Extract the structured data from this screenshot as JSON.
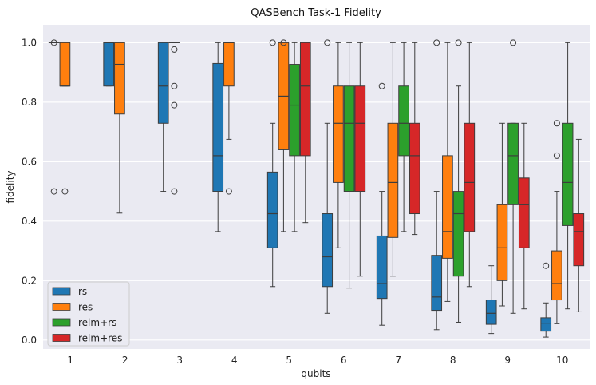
{
  "chart_data": {
    "type": "boxplot",
    "title": "QASBench Task-1 Fidelity",
    "xlabel": "qubits",
    "ylabel": "fidelity",
    "ylim": [
      -0.03,
      1.06
    ],
    "yticks": [
      "0.0",
      "0.2",
      "0.4",
      "0.6",
      "0.8",
      "1.0"
    ],
    "categories": [
      "1",
      "2",
      "3",
      "4",
      "5",
      "6",
      "7",
      "8",
      "9",
      "10"
    ],
    "legend_position": "lower-left",
    "grid": true,
    "series": [
      {
        "name": "rs",
        "color": "#1f77b4",
        "boxes": [
          {
            "category": "1",
            "q1": 1.0,
            "median": 1.0,
            "q3": 1.0,
            "whisker_low": 1.0,
            "whisker_high": 1.0,
            "outliers": [
              1.0,
              0.5
            ]
          },
          {
            "category": "2",
            "q1": 0.854,
            "median": 1.0,
            "q3": 1.0,
            "whisker_low": 0.854,
            "whisker_high": 1.0,
            "outliers": []
          },
          {
            "category": "3",
            "q1": 0.729,
            "median": 0.854,
            "q3": 1.0,
            "whisker_low": 0.5,
            "whisker_high": 1.0,
            "outliers": []
          },
          {
            "category": "4",
            "q1": 0.5,
            "median": 0.62,
            "q3": 0.93,
            "whisker_low": 0.365,
            "whisker_high": 1.0,
            "outliers": []
          },
          {
            "category": "5",
            "q1": 0.31,
            "median": 0.425,
            "q3": 0.565,
            "whisker_low": 0.18,
            "whisker_high": 0.729,
            "outliers": [
              1.0
            ]
          },
          {
            "category": "6",
            "q1": 0.18,
            "median": 0.28,
            "q3": 0.425,
            "whisker_low": 0.09,
            "whisker_high": 0.729,
            "outliers": [
              1.0
            ]
          },
          {
            "category": "7",
            "q1": 0.14,
            "median": 0.19,
            "q3": 0.35,
            "whisker_low": 0.05,
            "whisker_high": 0.5,
            "outliers": [
              0.854
            ]
          },
          {
            "category": "8",
            "q1": 0.1,
            "median": 0.145,
            "q3": 0.285,
            "whisker_low": 0.035,
            "whisker_high": 0.5,
            "outliers": [
              1.0
            ]
          },
          {
            "category": "9",
            "q1": 0.053,
            "median": 0.09,
            "q3": 0.135,
            "whisker_low": 0.022,
            "whisker_high": 0.25,
            "outliers": []
          },
          {
            "category": "10",
            "q1": 0.03,
            "median": 0.057,
            "q3": 0.075,
            "whisker_low": 0.01,
            "whisker_high": 0.125,
            "outliers": [
              0.25
            ]
          }
        ]
      },
      {
        "name": "res",
        "color": "#ff7f0e",
        "boxes": [
          {
            "category": "1",
            "q1": 0.854,
            "median": 0.854,
            "q3": 1.0,
            "whisker_low": 0.854,
            "whisker_high": 1.0,
            "outliers": [
              0.5
            ]
          },
          {
            "category": "2",
            "q1": 0.76,
            "median": 0.927,
            "q3": 1.0,
            "whisker_low": 0.427,
            "whisker_high": 1.0,
            "outliers": []
          },
          {
            "category": "3",
            "q1": 1.0,
            "median": 1.0,
            "q3": 1.0,
            "whisker_low": 1.0,
            "whisker_high": 1.0,
            "outliers": [
              0.977,
              0.854,
              0.79,
              0.5
            ]
          },
          {
            "category": "4",
            "q1": 0.854,
            "median": 1.0,
            "q3": 1.0,
            "whisker_low": 0.675,
            "whisker_high": 1.0,
            "outliers": [
              0.5
            ]
          },
          {
            "category": "5",
            "q1": 0.64,
            "median": 0.82,
            "q3": 1.0,
            "whisker_low": 0.365,
            "whisker_high": 1.0,
            "outliers": [
              1.0
            ]
          },
          {
            "category": "6",
            "q1": 0.53,
            "median": 0.729,
            "q3": 0.854,
            "whisker_low": 0.31,
            "whisker_high": 1.0,
            "outliers": []
          },
          {
            "category": "7",
            "q1": 0.345,
            "median": 0.53,
            "q3": 0.729,
            "whisker_low": 0.215,
            "whisker_high": 1.0,
            "outliers": []
          },
          {
            "category": "8",
            "q1": 0.275,
            "median": 0.365,
            "q3": 0.62,
            "whisker_low": 0.13,
            "whisker_high": 1.0,
            "outliers": []
          },
          {
            "category": "9",
            "q1": 0.2,
            "median": 0.31,
            "q3": 0.455,
            "whisker_low": 0.115,
            "whisker_high": 0.729,
            "outliers": []
          },
          {
            "category": "10",
            "q1": 0.135,
            "median": 0.19,
            "q3": 0.3,
            "whisker_low": 0.055,
            "whisker_high": 0.5,
            "outliers": [
              0.729,
              0.62
            ]
          }
        ]
      },
      {
        "name": "relm+rs",
        "color": "#2ca02c",
        "boxes": [
          {
            "category": "5",
            "q1": 0.62,
            "median": 0.79,
            "q3": 0.927,
            "whisker_low": 0.365,
            "whisker_high": 1.0,
            "outliers": []
          },
          {
            "category": "6",
            "q1": 0.5,
            "median": 0.729,
            "q3": 0.854,
            "whisker_low": 0.175,
            "whisker_high": 1.0,
            "outliers": []
          },
          {
            "category": "7",
            "q1": 0.62,
            "median": 0.729,
            "q3": 0.854,
            "whisker_low": 0.365,
            "whisker_high": 1.0,
            "outliers": []
          },
          {
            "category": "8",
            "q1": 0.215,
            "median": 0.425,
            "q3": 0.5,
            "whisker_low": 0.06,
            "whisker_high": 0.854,
            "outliers": [
              1.0
            ]
          },
          {
            "category": "9",
            "q1": 0.455,
            "median": 0.62,
            "q3": 0.729,
            "whisker_low": 0.09,
            "whisker_high": 0.729,
            "outliers": [
              1.0
            ]
          },
          {
            "category": "10",
            "q1": 0.385,
            "median": 0.53,
            "q3": 0.729,
            "whisker_low": 0.105,
            "whisker_high": 1.0,
            "outliers": []
          }
        ]
      },
      {
        "name": "relm+res",
        "color": "#d62728",
        "boxes": [
          {
            "category": "5",
            "q1": 0.62,
            "median": 0.854,
            "q3": 1.0,
            "whisker_low": 0.395,
            "whisker_high": 1.0,
            "outliers": []
          },
          {
            "category": "6",
            "q1": 0.5,
            "median": 0.729,
            "q3": 0.854,
            "whisker_low": 0.215,
            "whisker_high": 1.0,
            "outliers": []
          },
          {
            "category": "7",
            "q1": 0.425,
            "median": 0.62,
            "q3": 0.729,
            "whisker_low": 0.355,
            "whisker_high": 1.0,
            "outliers": []
          },
          {
            "category": "8",
            "q1": 0.365,
            "median": 0.53,
            "q3": 0.729,
            "whisker_low": 0.18,
            "whisker_high": 1.0,
            "outliers": []
          },
          {
            "category": "9",
            "q1": 0.31,
            "median": 0.455,
            "q3": 0.545,
            "whisker_low": 0.105,
            "whisker_high": 0.729,
            "outliers": []
          },
          {
            "category": "10",
            "q1": 0.25,
            "median": 0.365,
            "q3": 0.425,
            "whisker_low": 0.095,
            "whisker_high": 0.675,
            "outliers": []
          }
        ]
      }
    ]
  }
}
